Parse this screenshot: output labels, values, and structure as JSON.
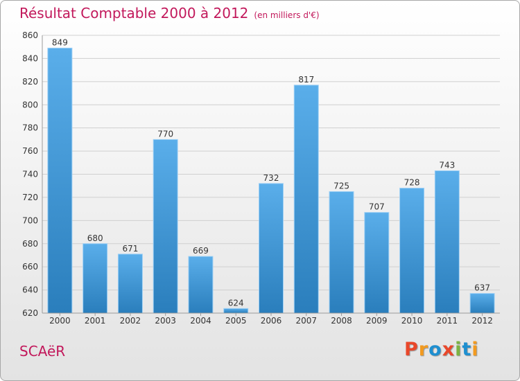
{
  "header": {
    "title": "Résultat Comptable 2000 à 2012",
    "unit": "(en milliers d'€)"
  },
  "footer": {
    "commune": "SCAëR",
    "brand": [
      "P",
      "r",
      "o",
      "x",
      "i",
      "t",
      "i"
    ]
  },
  "colors": {
    "title": "#c2185b",
    "bar_top": "#5aaeea",
    "bar_bottom": "#2a7ebc",
    "bar_edge": "#9fd0f5",
    "grid": "#cfcfcf",
    "axis_text": "#333333",
    "brand": [
      "#e9472a",
      "#f29a1f",
      "#1e8fd0",
      "#e9472a",
      "#7cb342",
      "#1e8fd0",
      "#f29a1f"
    ]
  },
  "chart_data": {
    "type": "bar",
    "title": "Résultat Comptable 2000 à 2012",
    "xlabel": "",
    "ylabel": "",
    "categories": [
      "2000",
      "2001",
      "2002",
      "2003",
      "2004",
      "2005",
      "2006",
      "2007",
      "2008",
      "2009",
      "2010",
      "2011",
      "2012"
    ],
    "values": [
      849,
      680,
      671,
      770,
      669,
      624,
      732,
      817,
      725,
      707,
      728,
      743,
      637
    ],
    "ylim": [
      620,
      860
    ],
    "yticks": [
      620,
      640,
      660,
      680,
      700,
      720,
      740,
      760,
      780,
      800,
      820,
      840,
      860
    ],
    "grid": true
  }
}
